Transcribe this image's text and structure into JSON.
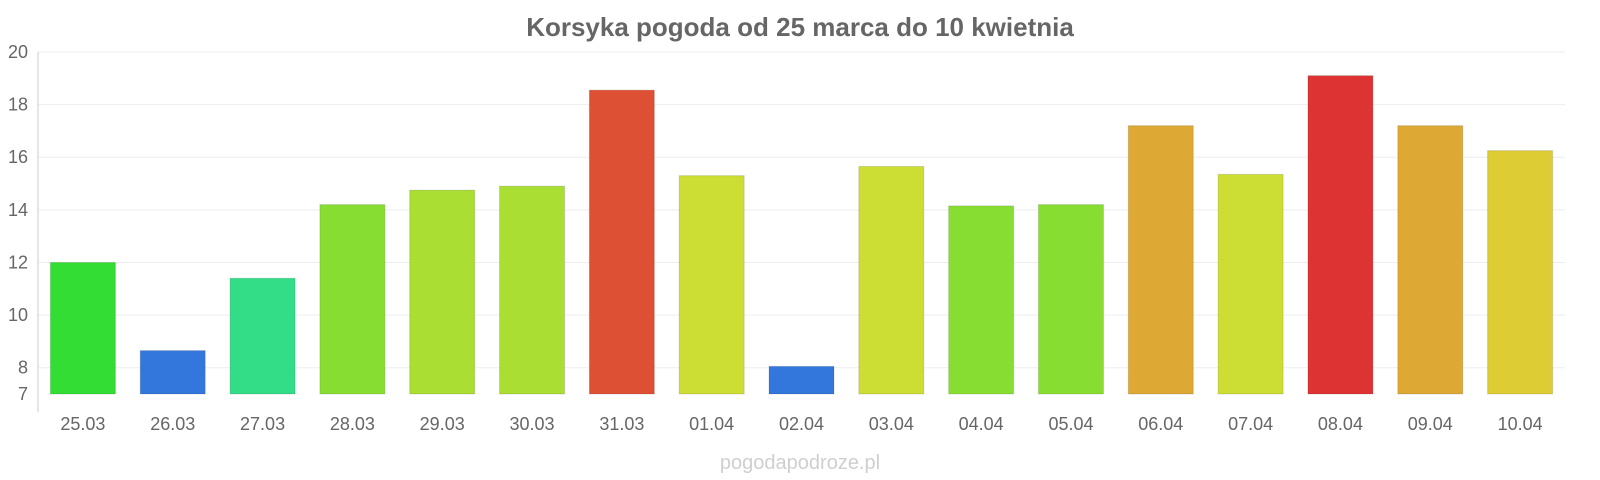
{
  "chart_data": {
    "type": "bar",
    "title": "Korsyka pogoda od 25 marca do 10 kwietnia",
    "xlabel": "",
    "ylabel": "",
    "ylim": [
      7,
      20
    ],
    "y_ticks": [
      "20",
      "18",
      "16",
      "14",
      "12",
      "10",
      "8",
      "7"
    ],
    "grid": true,
    "categories": [
      "25.03",
      "26.03",
      "27.03",
      "28.03",
      "29.03",
      "30.03",
      "31.03",
      "01.04",
      "02.04",
      "03.04",
      "04.04",
      "05.04",
      "06.04",
      "07.04",
      "08.04",
      "09.04",
      "10.04"
    ],
    "values": [
      12.0,
      8.65,
      11.4,
      14.2,
      14.75,
      14.9,
      18.55,
      15.3,
      8.05,
      15.65,
      14.15,
      14.2,
      17.2,
      15.35,
      19.1,
      17.2,
      16.25
    ],
    "bar_colors": [
      "#33dd33",
      "#3377dd",
      "#33dd88",
      "#88dd33",
      "#aade33",
      "#aade33",
      "#dd5033",
      "#ccdd33",
      "#3377dd",
      "#ccdd33",
      "#88dd33",
      "#88dd33",
      "#dda833",
      "#ccdd33",
      "#dd3333",
      "#dda833",
      "#ddcc33"
    ],
    "watermark": "pogodapodroze.pl"
  }
}
